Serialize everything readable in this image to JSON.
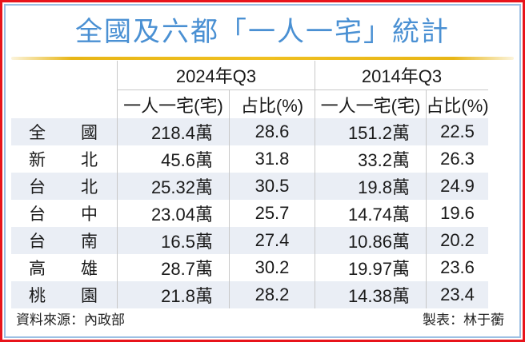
{
  "title": "全國及六都「一人一宅」統計",
  "header": {
    "period_a": "2024年Q3",
    "period_b": "2014年Q3",
    "col_count": "一人一宅(宅)",
    "col_ratio": "占比(%)"
  },
  "rows": [
    {
      "r1": "全",
      "r2": "國",
      "count_2024": "218.4萬",
      "ratio_2024": "28.6",
      "count_2014": "151.2萬",
      "ratio_2014": "22.5"
    },
    {
      "r1": "新",
      "r2": "北",
      "count_2024": "45.6萬",
      "ratio_2024": "31.8",
      "count_2014": "33.2萬",
      "ratio_2014": "26.3"
    },
    {
      "r1": "台",
      "r2": "北",
      "count_2024": "25.32萬",
      "ratio_2024": "30.5",
      "count_2014": "19.8萬",
      "ratio_2014": "24.9"
    },
    {
      "r1": "台",
      "r2": "中",
      "count_2024": "23.04萬",
      "ratio_2024": "25.7",
      "count_2014": "14.74萬",
      "ratio_2014": "19.6"
    },
    {
      "r1": "台",
      "r2": "南",
      "count_2024": "16.5萬",
      "ratio_2024": "27.4",
      "count_2014": "10.86萬",
      "ratio_2014": "20.2"
    },
    {
      "r1": "高",
      "r2": "雄",
      "count_2024": "28.7萬",
      "ratio_2024": "30.2",
      "count_2014": "19.97萬",
      "ratio_2014": "23.6"
    },
    {
      "r1": "桃",
      "r2": "園",
      "count_2024": "21.8萬",
      "ratio_2024": "28.2",
      "count_2014": "14.38萬",
      "ratio_2014": "23.4"
    }
  ],
  "footer": {
    "source": "資料來源：內政部",
    "credit": "製表：林于蘅"
  },
  "colors": {
    "title": "#4a90d3",
    "outer_border": "#e8141b",
    "inner_border": "#9cc0e4",
    "rule": "#f0c020",
    "row_shade": "#eaeef5"
  }
}
